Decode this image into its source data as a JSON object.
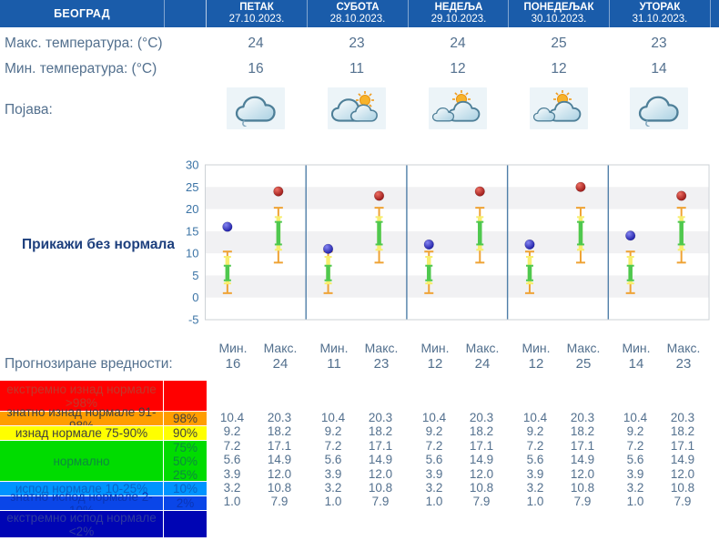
{
  "header": {
    "location": "БЕОГРАД",
    "bg_color": "#1a5caa",
    "days": [
      {
        "name": "ПЕТАК",
        "date": "27.10.2023."
      },
      {
        "name": "СУБОТА",
        "date": "28.10.2023."
      },
      {
        "name": "НЕДЕЉА",
        "date": "29.10.2023."
      },
      {
        "name": "ПОНЕДЕЉАК",
        "date": "30.10.2023."
      },
      {
        "name": "УТОРАК",
        "date": "31.10.2023."
      }
    ]
  },
  "labels": {
    "max_temp": "Макс. температура: (°C)",
    "min_temp": "Мин. температура: (°C)",
    "phenomena": "Појава:",
    "forecast_values": "Прогнозиране вредности:",
    "show_without_normals": "Прикажи без нормала",
    "min_short": "Мин.",
    "max_short": "Макс."
  },
  "max_temps": [
    "24",
    "23",
    "24",
    "25",
    "23"
  ],
  "min_temps": [
    "16",
    "11",
    "12",
    "12",
    "14"
  ],
  "phenomena_icons": [
    "cloudy-moon-icon",
    "clouds-sun-icon",
    "sun-clouds-icon",
    "sun-clouds-icon",
    "cloudy-moon-icon"
  ],
  "chart_data": {
    "type": "scatter",
    "x_categories": [
      "27.10.2023.",
      "28.10.2023.",
      "29.10.2023.",
      "30.10.2023.",
      "31.10.2023."
    ],
    "ylim": [
      -5,
      30
    ],
    "yticks": [
      30,
      25,
      20,
      15,
      10,
      5,
      0,
      -5
    ],
    "shaded_bands": [
      [
        0,
        5
      ],
      [
        10,
        15
      ],
      [
        20,
        25
      ]
    ],
    "grid": "bands",
    "legend_position": "none",
    "series": [
      {
        "name": "forecast-min",
        "marker": "circle",
        "color": "#1c1cb0",
        "values": [
          16,
          11,
          12,
          12,
          14
        ]
      },
      {
        "name": "forecast-max",
        "marker": "circle",
        "color": "#b01c1c",
        "values": [
          24,
          23,
          24,
          25,
          23
        ]
      }
    ],
    "normal_ranges": {
      "min": {
        "p2": 1.0,
        "p10": 3.2,
        "p25": 3.9,
        "p50": 5.6,
        "p75": 7.2,
        "p90": 9.2,
        "p98": 10.4
      },
      "max": {
        "p2": 7.9,
        "p10": 10.8,
        "p25": 12.0,
        "p50": 14.9,
        "p75": 17.1,
        "p90": 18.2,
        "p98": 20.3
      }
    },
    "range_colors": {
      "outer": "#efa335",
      "mid": "#f7ee6e",
      "inner": "#4fc84f"
    }
  },
  "forecast_row": {
    "min": [
      "16",
      "11",
      "12",
      "12",
      "14"
    ],
    "max": [
      "24",
      "23",
      "24",
      "25",
      "23"
    ]
  },
  "climatology": {
    "rows": [
      {
        "label": "екстремно изнад нормале >98%",
        "pcts": [],
        "bg": "#ff0000",
        "fg": "#c0392b"
      },
      {
        "label": "знатно изнад нормале 91-98%",
        "pcts": [
          "98%"
        ],
        "bg": "#ff9d00",
        "fg": "#3f3f3f"
      },
      {
        "label": "изнад нормале 75-90%",
        "pcts": [
          "90%"
        ],
        "bg": "#ffff00",
        "fg": "#3f3f3f"
      },
      {
        "label": "нормално",
        "pcts": [
          "75%",
          "50%",
          "25%"
        ],
        "bg": "#00dc00",
        "fg": "#0c8a3e"
      },
      {
        "label": "испод нормале 10-25%",
        "pcts": [
          "10%"
        ],
        "bg": "#0094ff",
        "fg": "#0a62c6"
      },
      {
        "label": "знатно испод нормале 2-10%",
        "pcts": [
          "2%"
        ],
        "bg": "#0a46e8",
        "fg": "#0a35b5"
      },
      {
        "label": "екстремно испод нормале <2%",
        "pcts": [],
        "bg": "#0005b4",
        "fg": "#2e3a9e"
      }
    ],
    "per_day_identical": true,
    "day_values": {
      "min": [
        "10.4",
        "9.2",
        "7.2",
        "5.6",
        "3.9",
        "3.2",
        "1.0"
      ],
      "max": [
        "20.3",
        "18.2",
        "17.1",
        "14.9",
        "12.0",
        "10.8",
        "7.9"
      ]
    }
  }
}
